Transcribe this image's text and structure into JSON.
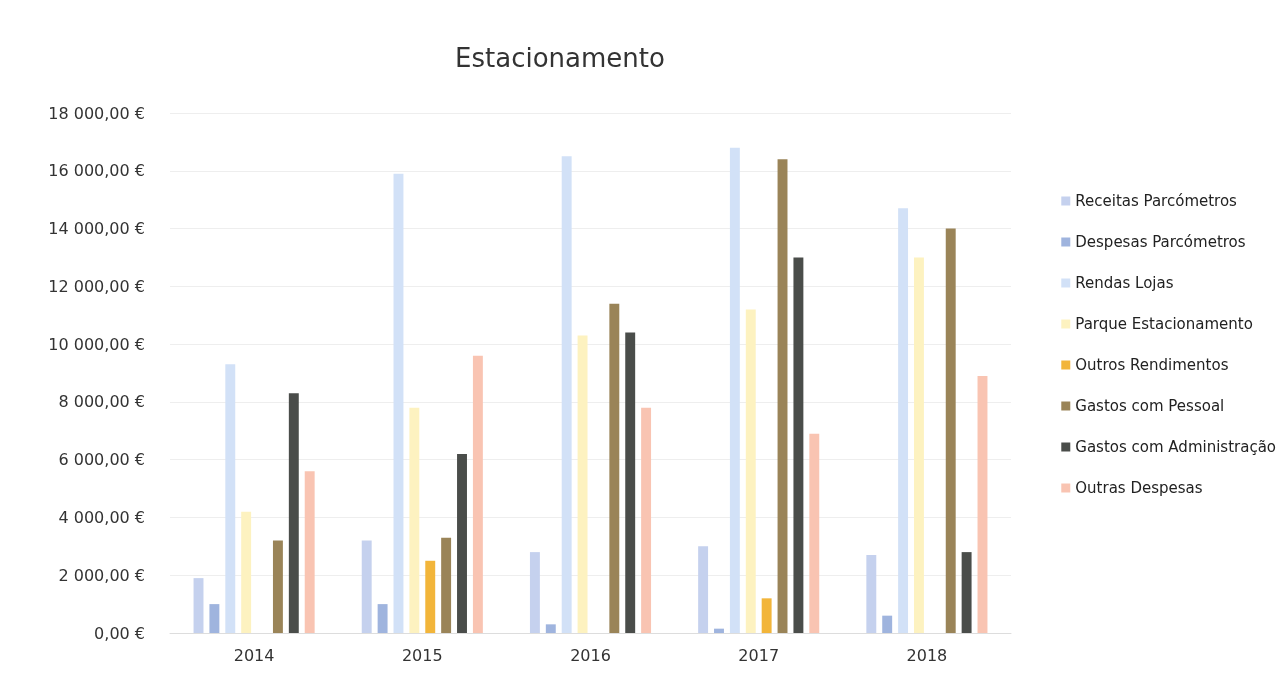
{
  "chart_data": {
    "type": "bar",
    "title": "Estacionamento",
    "categories": [
      "2014",
      "2015",
      "2016",
      "2017",
      "2018"
    ],
    "series": [
      {
        "name": "Receitas Parcómetros",
        "color": "#c5d1ee",
        "values": [
          1900,
          3200,
          2800,
          3000,
          2700
        ]
      },
      {
        "name": "Despesas Parcómetros",
        "color": "#9fb4de",
        "values": [
          1000,
          1000,
          300,
          150,
          600
        ]
      },
      {
        "name": "Rendas Lojas",
        "color": "#d2e1f7",
        "values": [
          9300,
          15900,
          16500,
          16800,
          14700
        ]
      },
      {
        "name": "Parque Estacionamento",
        "color": "#fdf2c0",
        "values": [
          4200,
          7800,
          10300,
          11200,
          13000
        ]
      },
      {
        "name": "Outros Rendimentos",
        "color": "#f2b53a",
        "values": [
          0,
          2500,
          0,
          1200,
          0
        ]
      },
      {
        "name": "Gastos com Pessoal",
        "color": "#9a8458",
        "values": [
          3200,
          3300,
          11400,
          16400,
          14000
        ]
      },
      {
        "name": "Gastos com Administração",
        "color": "#4a4d4a",
        "values": [
          8300,
          6200,
          10400,
          13000,
          2800
        ]
      },
      {
        "name": "Outras Despesas",
        "color": "#f9c4b2",
        "values": [
          5600,
          9600,
          7800,
          6900,
          8900
        ]
      }
    ],
    "ylim": [
      0,
      18000
    ],
    "yticks": [
      {
        "value": 0,
        "label": "0,00 €"
      },
      {
        "value": 2000,
        "label": "2 000,00 €"
      },
      {
        "value": 4000,
        "label": "4 000,00 €"
      },
      {
        "value": 6000,
        "label": "6 000,00 €"
      },
      {
        "value": 8000,
        "label": "8 000,00 €"
      },
      {
        "value": 10000,
        "label": "10 000,00 €"
      },
      {
        "value": 12000,
        "label": "12 000,00 €"
      },
      {
        "value": 14000,
        "label": "14 000,00 €"
      },
      {
        "value": 16000,
        "label": "16 000,00 €"
      },
      {
        "value": 18000,
        "label": "18 000,00 €"
      }
    ],
    "grid": "y",
    "legend": "right"
  }
}
